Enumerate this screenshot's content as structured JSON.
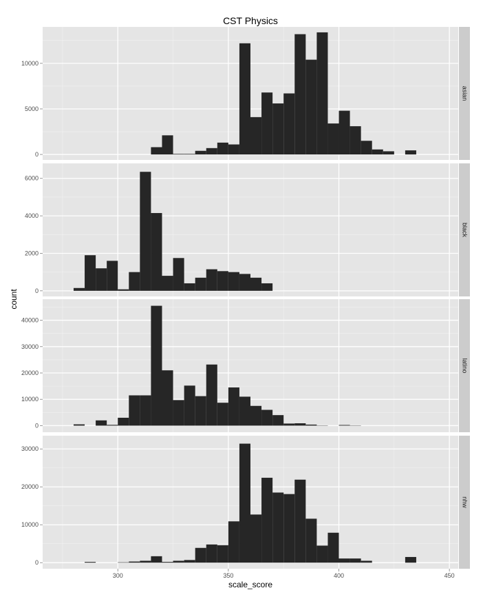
{
  "chart_data": {
    "type": "bar",
    "title": "CST Physics",
    "xlabel": "scale_score",
    "ylabel": "count",
    "xlim": [
      266,
      454
    ],
    "x_ticks": [
      300,
      350,
      400,
      450
    ],
    "bin_width": 5,
    "bin_starts": [
      280,
      285,
      290,
      295,
      300,
      305,
      310,
      315,
      320,
      325,
      330,
      335,
      340,
      345,
      350,
      355,
      360,
      365,
      370,
      375,
      380,
      385,
      390,
      395,
      400,
      405,
      410,
      415,
      420,
      425,
      430,
      435
    ],
    "grid": true,
    "colors": {
      "panel_bg": "#e5e5e5",
      "grid_major": "#ffffff",
      "strip_bg": "#cccccc",
      "bar_fill": "#262626"
    },
    "panels": [
      {
        "name": "asian",
        "ylim": [
          -600,
          14000
        ],
        "y_ticks": [
          0,
          5000,
          10000
        ],
        "values": [
          0,
          0,
          0,
          0,
          0,
          0,
          0,
          800,
          2100,
          60,
          60,
          400,
          700,
          1300,
          1100,
          12200,
          4100,
          6800,
          5600,
          6700,
          13200,
          10400,
          13400,
          3400,
          4800,
          3100,
          1500,
          550,
          350,
          0,
          450,
          0
        ]
      },
      {
        "name": "black",
        "ylim": [
          -300,
          6800
        ],
        "y_ticks": [
          0,
          2000,
          4000,
          6000
        ],
        "values": [
          150,
          1900,
          1200,
          1600,
          80,
          1000,
          6350,
          4150,
          800,
          1750,
          400,
          700,
          1150,
          1050,
          1000,
          900,
          700,
          400,
          0,
          0,
          0,
          0,
          0,
          0,
          0,
          0,
          0,
          0,
          0,
          0,
          0,
          0
        ]
      },
      {
        "name": "latino",
        "ylim": [
          -2500,
          48000
        ],
        "y_ticks": [
          0,
          10000,
          20000,
          30000,
          40000
        ],
        "values": [
          500,
          0,
          2000,
          300,
          3000,
          11500,
          11500,
          45500,
          21000,
          9700,
          15200,
          11200,
          23200,
          8700,
          14500,
          11000,
          7500,
          6000,
          4000,
          800,
          900,
          400,
          100,
          0,
          250,
          100,
          0,
          0,
          0,
          0,
          0,
          0
        ]
      },
      {
        "name": "nhw",
        "ylim": [
          -1600,
          33500
        ],
        "y_ticks": [
          0,
          10000,
          20000,
          30000
        ],
        "values": [
          0,
          200,
          0,
          0,
          100,
          300,
          500,
          1700,
          200,
          500,
          700,
          3900,
          4800,
          4600,
          10900,
          31400,
          12700,
          22400,
          18500,
          18100,
          21900,
          11600,
          4500,
          7900,
          1100,
          1100,
          500,
          0,
          0,
          0,
          1500,
          0
        ]
      }
    ]
  }
}
